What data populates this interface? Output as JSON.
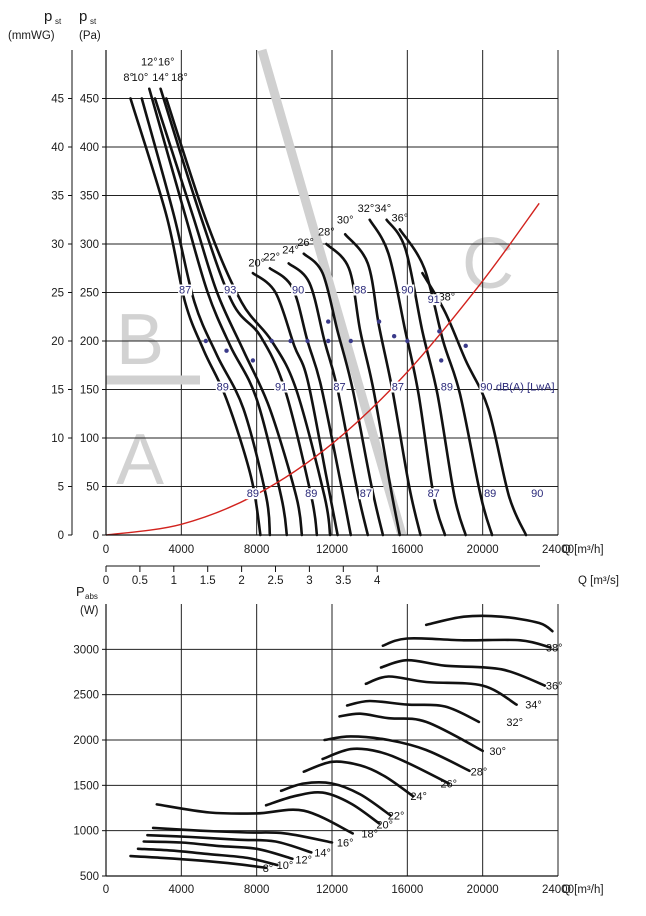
{
  "chart_data": [
    {
      "type": "line",
      "left_axis_units": [
        "p",
        "st",
        "(mmWG)"
      ],
      "right_axis_units": [
        "p",
        "st",
        "(Pa)"
      ],
      "x_axis_label": "Q [m³/h]",
      "x_ticks": [
        "0",
        "4000",
        "8000",
        "12000",
        "16000",
        "20000",
        "24000"
      ],
      "x2_axis_label": "Q [m³/s]",
      "x2_ticks": [
        "0",
        "0.5",
        "1",
        "1.5",
        "2",
        "2.5",
        "3",
        "3.5",
        "4"
      ],
      "y_pa_ticks": [
        "0",
        "50",
        "100",
        "150",
        "200",
        "250",
        "300",
        "350",
        "400",
        "450"
      ],
      "y_mm_ticks": [
        "0",
        "5",
        "10",
        "15",
        "20",
        "25",
        "30",
        "35",
        "40",
        "45"
      ],
      "xlim": [
        0,
        24000
      ],
      "ylim": [
        0,
        500
      ],
      "region_labels": [
        "A",
        "B",
        "C"
      ],
      "angle_labels": [
        "8°",
        "10°",
        "12°",
        "14°",
        "16°",
        "18°",
        "20°",
        "22°",
        "24°",
        "26°",
        "28°",
        "30°",
        "32°",
        "34°",
        "36°",
        "38°"
      ],
      "series": [
        {
          "angle": "8°",
          "x": [
            1300,
            3200,
            4200,
            5200,
            6400,
            7700,
            8200
          ],
          "y": [
            450,
            330,
            240,
            190,
            140,
            60,
            0
          ]
        },
        {
          "angle": "10°",
          "x": [
            1900,
            3600,
            4700,
            5900,
            7300,
            8500,
            8700
          ],
          "y": [
            450,
            330,
            240,
            185,
            130,
            40,
            0
          ]
        },
        {
          "angle": "12°",
          "x": [
            2300,
            4200,
            5400,
            6600,
            8000,
            9300,
            9600
          ],
          "y": [
            460,
            330,
            250,
            195,
            140,
            40,
            0
          ]
        },
        {
          "angle": "14°",
          "x": [
            2600,
            4600,
            5900,
            7300,
            8700,
            10100,
            10400
          ],
          "y": [
            450,
            330,
            250,
            190,
            130,
            40,
            0
          ]
        },
        {
          "angle": "16°",
          "x": [
            2900,
            5000,
            6700,
            8200,
            9500,
            10900,
            11200
          ],
          "y": [
            460,
            330,
            240,
            205,
            150,
            40,
            0
          ]
        },
        {
          "angle": "18°",
          "x": [
            3200,
            5400,
            7200,
            8800,
            10100,
            11600,
            11900
          ],
          "y": [
            450,
            320,
            240,
            200,
            150,
            40,
            0
          ]
        },
        {
          "angle": "20°",
          "x": [
            7800,
            9000,
            10000,
            10700,
            11700,
            12300
          ],
          "y": [
            270,
            250,
            195,
            160,
            60,
            0
          ]
        },
        {
          "angle": "22°",
          "x": [
            8700,
            9900,
            10700,
            11400,
            12400,
            13000
          ],
          "y": [
            275,
            255,
            200,
            155,
            60,
            0
          ]
        },
        {
          "angle": "24°",
          "x": [
            9700,
            10800,
            11600,
            12300,
            13300,
            13900
          ],
          "y": [
            280,
            260,
            200,
            150,
            50,
            0
          ]
        },
        {
          "angle": "26°",
          "x": [
            10500,
            11500,
            12300,
            13100,
            14100,
            14700
          ],
          "y": [
            290,
            270,
            210,
            150,
            50,
            0
          ]
        },
        {
          "angle": "28°",
          "x": [
            11700,
            12900,
            13500,
            14200,
            15100,
            15600
          ],
          "y": [
            300,
            275,
            210,
            150,
            50,
            0
          ]
        },
        {
          "angle": "30°",
          "x": [
            12700,
            13900,
            14500,
            15200,
            16100,
            16700
          ],
          "y": [
            310,
            280,
            215,
            150,
            50,
            0
          ]
        },
        {
          "angle": "32°",
          "x": [
            14000,
            15000,
            15900,
            16600,
            17400,
            18000
          ],
          "y": [
            325,
            290,
            210,
            145,
            40,
            0
          ]
        },
        {
          "angle": "34°",
          "x": [
            14900,
            15900,
            16800,
            17600,
            18500,
            19100
          ],
          "y": [
            325,
            295,
            210,
            145,
            40,
            0
          ]
        },
        {
          "angle": "36°",
          "x": [
            15600,
            16900,
            17900,
            18800,
            19900,
            20500
          ],
          "y": [
            315,
            275,
            200,
            145,
            40,
            0
          ]
        },
        {
          "angle": "38°",
          "x": [
            16800,
            18000,
            19100,
            20300,
            21400,
            22300
          ],
          "y": [
            270,
            230,
            180,
            130,
            40,
            0
          ]
        }
      ],
      "system_curve": {
        "x": [
          0,
          4000,
          8000,
          12000,
          16000,
          20000,
          23000
        ],
        "y": [
          0,
          11,
          42,
          94,
          168,
          262,
          342
        ]
      },
      "db_labels": [
        {
          "text": "87",
          "x": 4200,
          "y": 250
        },
        {
          "text": "93",
          "x": 6600,
          "y": 250
        },
        {
          "text": "90",
          "x": 10200,
          "y": 250
        },
        {
          "text": "88",
          "x": 13500,
          "y": 250
        },
        {
          "text": "90",
          "x": 16000,
          "y": 250
        },
        {
          "text": "91",
          "x": 17400,
          "y": 240
        },
        {
          "text": "89",
          "x": 6200,
          "y": 150
        },
        {
          "text": "91",
          "x": 9300,
          "y": 150
        },
        {
          "text": "87",
          "x": 12400,
          "y": 150
        },
        {
          "text": "87",
          "x": 15500,
          "y": 150
        },
        {
          "text": "89",
          "x": 18100,
          "y": 150
        },
        {
          "text": "90",
          "x": 20200,
          "y": 150
        },
        {
          "text": "89",
          "x": 7800,
          "y": 40
        },
        {
          "text": "89",
          "x": 10900,
          "y": 40
        },
        {
          "text": "87",
          "x": 13800,
          "y": 40
        },
        {
          "text": "87",
          "x": 17400,
          "y": 40
        },
        {
          "text": "89",
          "x": 20400,
          "y": 40
        },
        {
          "text": "90",
          "x": 22900,
          "y": 40
        }
      ],
      "db_unit_label": "dB(A) [LwA]"
    },
    {
      "type": "line",
      "y_axis_units": [
        "P",
        "abs",
        "(W)"
      ],
      "x_axis_label": "Q [m³/h]",
      "x_ticks": [
        "0",
        "4000",
        "8000",
        "12000",
        "16000",
        "20000",
        "24000"
      ],
      "y_ticks": [
        "500",
        "1000",
        "1500",
        "2000",
        "2500",
        "3000"
      ],
      "xlim": [
        0,
        24000
      ],
      "ylim": [
        500,
        3500
      ],
      "series": [
        {
          "angle": "8°",
          "x": [
            1300,
            3000,
            5000,
            7000,
            8500
          ],
          "y": [
            720,
            700,
            670,
            630,
            590
          ]
        },
        {
          "angle": "10°",
          "x": [
            1700,
            3500,
            5500,
            7500,
            9100
          ],
          "y": [
            800,
            780,
            740,
            700,
            620
          ]
        },
        {
          "angle": "12°",
          "x": [
            2000,
            4000,
            6000,
            8000,
            9900
          ],
          "y": [
            880,
            870,
            830,
            800,
            690
          ]
        },
        {
          "angle": "14°",
          "x": [
            2200,
            4500,
            7000,
            9000,
            10900
          ],
          "y": [
            950,
            930,
            900,
            880,
            760
          ]
        },
        {
          "angle": "16°",
          "x": [
            2500,
            5000,
            7500,
            9500,
            12000
          ],
          "y": [
            1030,
            1000,
            980,
            970,
            870
          ]
        },
        {
          "angle": "18°",
          "x": [
            2700,
            5500,
            8000,
            10500,
            13100
          ],
          "y": [
            1290,
            1200,
            1190,
            1220,
            970
          ]
        },
        {
          "angle": "20°",
          "x": [
            8500,
            10000,
            11500,
            13000,
            14500
          ],
          "y": [
            1280,
            1380,
            1420,
            1300,
            1080
          ]
        },
        {
          "angle": "22°",
          "x": [
            9300,
            10500,
            12000,
            13500,
            15100
          ],
          "y": [
            1440,
            1520,
            1520,
            1400,
            1170
          ]
        },
        {
          "angle": "24°",
          "x": [
            10500,
            12000,
            13500,
            14800,
            16300
          ],
          "y": [
            1650,
            1760,
            1720,
            1600,
            1380
          ]
        },
        {
          "angle": "26°",
          "x": [
            11500,
            13000,
            14500,
            16000,
            18200
          ],
          "y": [
            1790,
            1900,
            1870,
            1750,
            1520
          ]
        },
        {
          "angle": "28°",
          "x": [
            11600,
            13000,
            15000,
            17000,
            19300
          ],
          "y": [
            2000,
            2040,
            2000,
            1890,
            1660
          ]
        },
        {
          "angle": "30°",
          "x": [
            12400,
            13500,
            15000,
            17000,
            20000
          ],
          "y": [
            2260,
            2290,
            2240,
            2200,
            1880
          ]
        },
        {
          "angle": "32°",
          "x": [
            12800,
            14000,
            16000,
            18000,
            19800
          ],
          "y": [
            2380,
            2430,
            2390,
            2370,
            2200
          ]
        },
        {
          "angle": "34°",
          "x": [
            13800,
            15000,
            17000,
            20000,
            21800
          ],
          "y": [
            2620,
            2700,
            2640,
            2600,
            2390
          ]
        },
        {
          "angle": "36°",
          "x": [
            14600,
            16000,
            18000,
            21000,
            23300
          ],
          "y": [
            2800,
            2880,
            2820,
            2780,
            2600
          ]
        },
        {
          "angle": "38°",
          "x": [
            14700,
            16000,
            19000,
            22000,
            23600
          ],
          "y": [
            3040,
            3120,
            3100,
            3100,
            3020
          ]
        },
        {
          "angle": "38° top",
          "x": [
            17000,
            19000,
            21000,
            23000,
            23700
          ],
          "y": [
            3270,
            3360,
            3360,
            3290,
            3200
          ]
        }
      ],
      "angle_labels": [
        "8°",
        "10°",
        "12°",
        "14°",
        "16°",
        "18°",
        "20°",
        "22°",
        "24°",
        "26°",
        "28°",
        "30°",
        "32°",
        "34°",
        "36°",
        "38°"
      ]
    }
  ]
}
